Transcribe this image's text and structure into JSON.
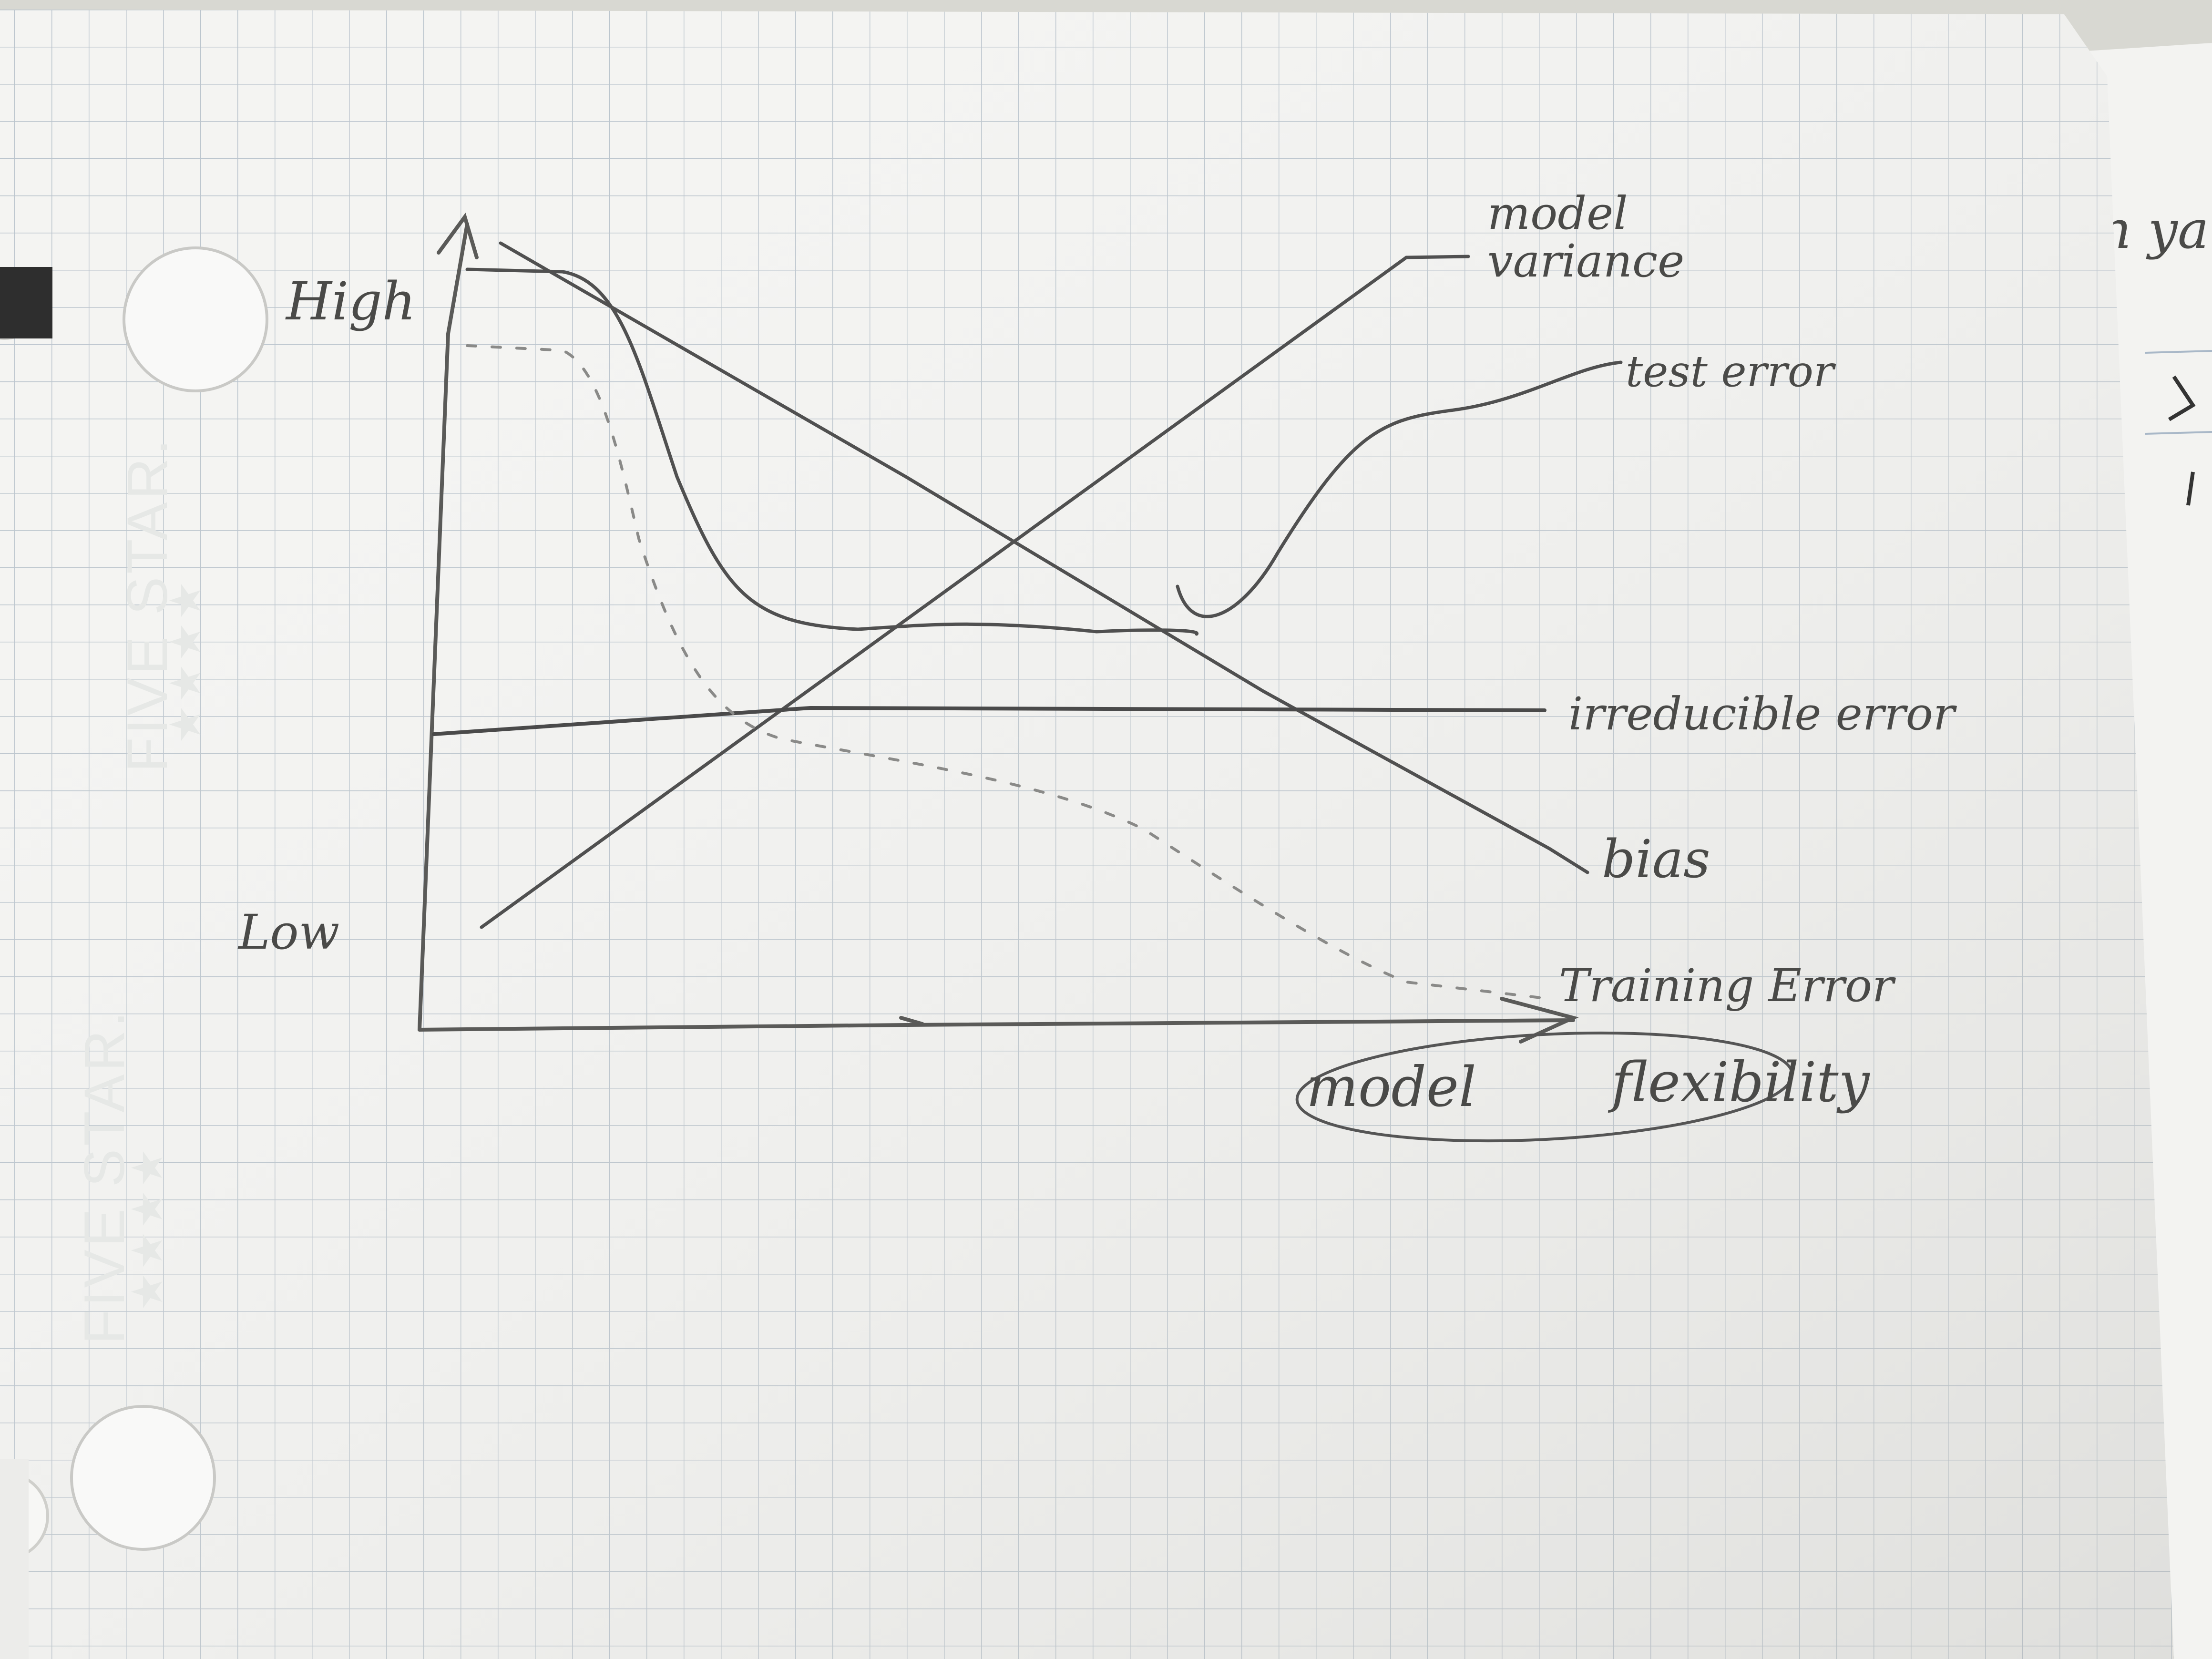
{
  "notebook": {
    "brand_text": "FIVE STAR.",
    "brand_stars": "★★★★"
  },
  "diagram": {
    "y_axis_high": "High",
    "y_axis_low": "Low",
    "x_axis_label_word1": "model",
    "x_axis_label_word2": "flexibility",
    "curves": {
      "model_variance_line1": "model",
      "model_variance_line2": "variance",
      "test_error": "test error",
      "irreducible_error": "irreducible error",
      "bias": "bias",
      "training_error": "Training Error"
    }
  },
  "neighbor_page": {
    "fragment": "n ya"
  }
}
